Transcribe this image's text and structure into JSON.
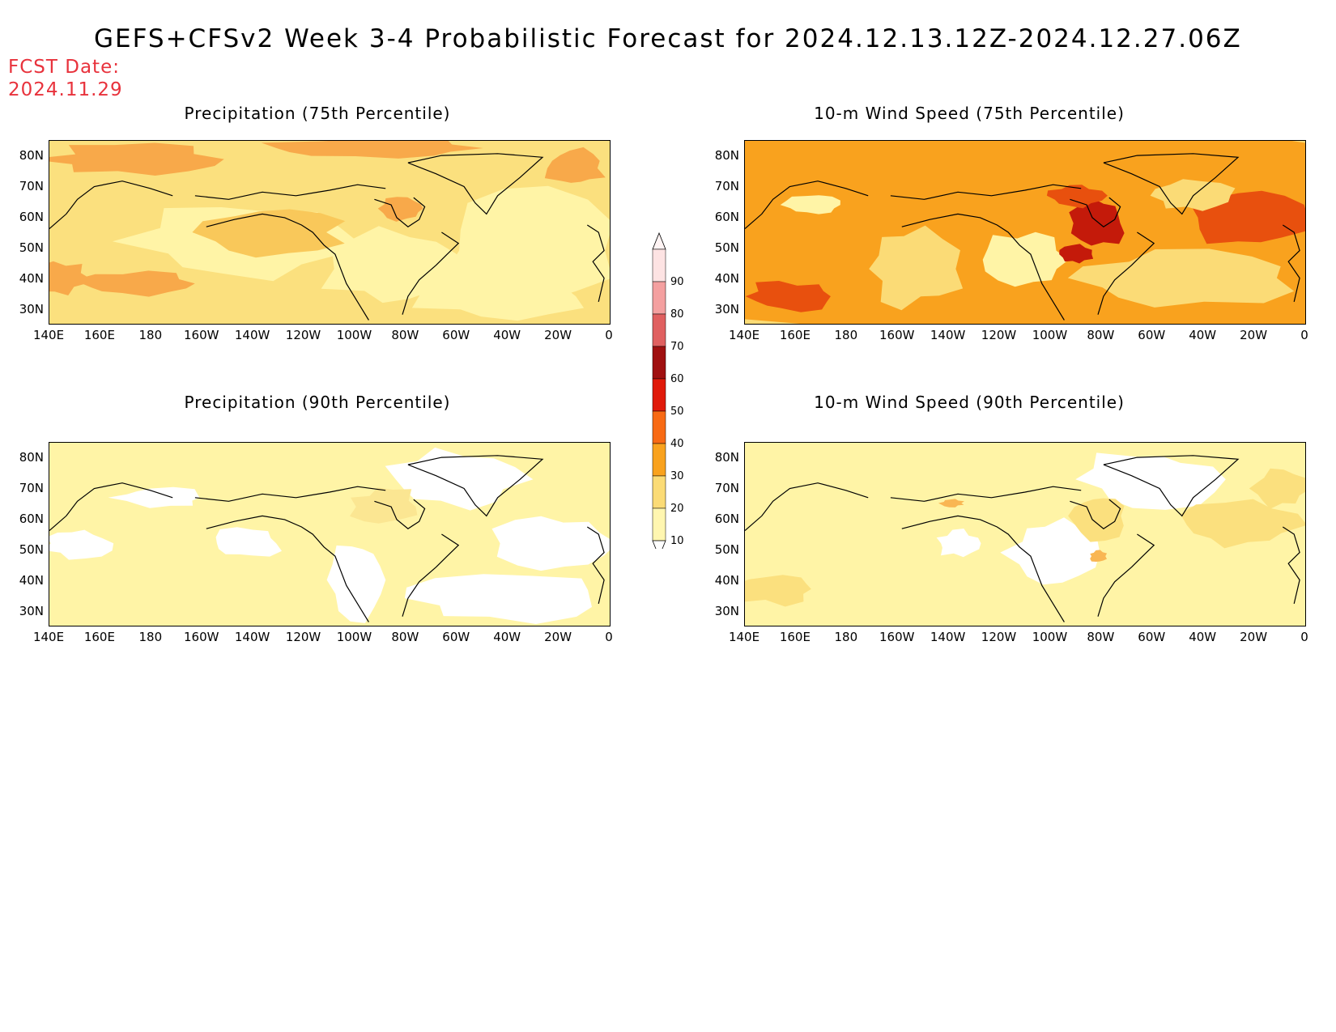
{
  "header": {
    "title": "GEFS+CFSv2 Week 3-4 Probabilistic Forecast for 2024.12.13.12Z-2024.12.27.06Z",
    "fcst_label": "FCST Date:",
    "fcst_value": "2024.11.29"
  },
  "panels": [
    {
      "id": "precip-75",
      "title": "Precipitation (75th Percentile)",
      "palette": [
        "#fff4a6",
        "#fbe07e",
        "#f9c85a",
        "#f8a94a"
      ]
    },
    {
      "id": "wind-75",
      "title": "10-m Wind Speed (75th Percentile)",
      "palette": [
        "#fff4a6",
        "#fbdb76",
        "#f9a21e",
        "#e8500e",
        "#c41a0a"
      ]
    },
    {
      "id": "precip-90",
      "title": "Precipitation (90th Percentile)",
      "palette": [
        "#ffffff",
        "#fff4a6",
        "#fbe692"
      ]
    },
    {
      "id": "wind-90",
      "title": "10-m Wind Speed (90th Percentile)",
      "palette": [
        "#ffffff",
        "#fff4a6",
        "#fbe07e",
        "#f9b653"
      ]
    }
  ],
  "axes": {
    "lat_ticks": [
      "80N",
      "70N",
      "60N",
      "50N",
      "40N",
      "30N"
    ],
    "lon_ticks": [
      "140E",
      "160E",
      "180",
      "160W",
      "140W",
      "120W",
      "100W",
      "80W",
      "60W",
      "40W",
      "20W",
      "0"
    ]
  },
  "colorbar": {
    "ticks": [
      "90",
      "80",
      "70",
      "60",
      "50",
      "40",
      "30",
      "20",
      "10"
    ],
    "colors": [
      "#fde3e3",
      "#f4a0a0",
      "#e06060",
      "#a01010",
      "#e01a0a",
      "#f86a14",
      "#f9a21e",
      "#fbdb76",
      "#fff6b0"
    ]
  }
}
